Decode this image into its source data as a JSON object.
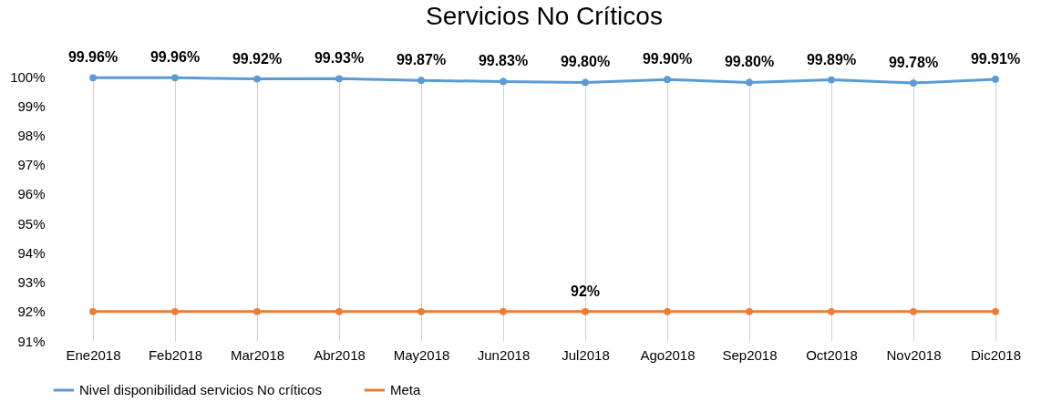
{
  "chart_data": {
    "type": "line",
    "title": "Servicios No Críticos",
    "categories": [
      "Ene2018",
      "Feb2018",
      "Mar2018",
      "Abr2018",
      "May2018",
      "Jun2018",
      "Jul2018",
      "Ago2018",
      "Sep2018",
      "Oct2018",
      "Nov2018",
      "Dic2018"
    ],
    "series": [
      {
        "name": "Nivel disponibilidad servicios No críticos",
        "color": "#5b9bd5",
        "values": [
          99.96,
          99.96,
          99.92,
          99.93,
          99.87,
          99.83,
          99.8,
          99.9,
          99.8,
          99.89,
          99.78,
          99.91
        ],
        "value_labels": [
          "99.96%",
          "99.96%",
          "99.92%",
          "99.93%",
          "99.87%",
          "99.83%",
          "99.80%",
          "99.90%",
          "99.80%",
          "99.89%",
          "99.78%",
          "99.91%"
        ]
      },
      {
        "name": "Meta",
        "color": "#ed7d31",
        "values": [
          92,
          92,
          92,
          92,
          92,
          92,
          92,
          92,
          92,
          92,
          92,
          92
        ],
        "value_labels": [
          null,
          null,
          null,
          null,
          null,
          null,
          "92%",
          null,
          null,
          null,
          null,
          null
        ]
      }
    ],
    "ylim": [
      91,
      100
    ],
    "yticks": [
      {
        "value": 91,
        "label": "91%"
      },
      {
        "value": 92,
        "label": "92%"
      },
      {
        "value": 93,
        "label": "93%"
      },
      {
        "value": 94,
        "label": "94%"
      },
      {
        "value": 95,
        "label": "95%"
      },
      {
        "value": 96,
        "label": "96%"
      },
      {
        "value": 97,
        "label": "97%"
      },
      {
        "value": 98,
        "label": "98%"
      },
      {
        "value": 99,
        "label": "99%"
      },
      {
        "value": 100,
        "label": "100%"
      }
    ],
    "grid": "x",
    "legend": "bottom",
    "marker": "circle"
  }
}
